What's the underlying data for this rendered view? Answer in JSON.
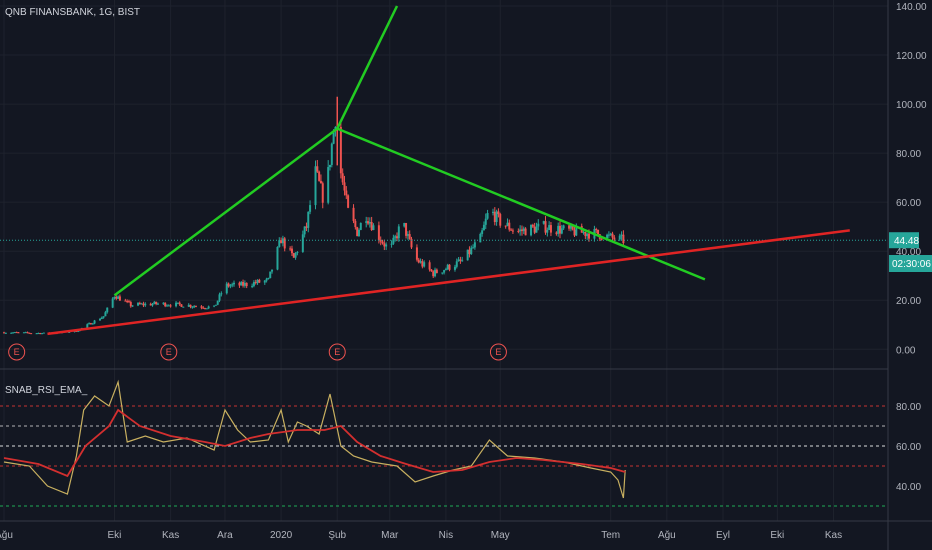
{
  "header": {
    "main_title": "QNB FINANSBANK, 1G, BIST",
    "indicator_title": "SNAB_RSI_EMA_"
  },
  "price_badges": {
    "last_price": "44.48",
    "countdown": "02:30:06"
  },
  "colors": {
    "background": "#131722",
    "grid": "#1e222d",
    "candle_up": "#26a69a",
    "candle_down": "#ef5350",
    "trend_green": "#22cc22",
    "trend_red": "#e02424",
    "rsi_line": "#c8b060",
    "rsi_ema": "#d32f2f",
    "last_price_line": "#26a69a",
    "earnings": "#ef5350"
  },
  "earnings_marker_label": "E",
  "chart_data": [
    {
      "type": "candlestick",
      "title": "QNB FINANSBANK, 1G, BIST",
      "ylim": [
        -6,
        140
      ],
      "y_ticks": [
        0,
        20,
        40,
        60,
        80,
        100,
        120,
        140
      ],
      "y_tick_labels": [
        "0.00",
        "20.00",
        "40.00",
        "60.00",
        "80.00",
        "100.00",
        "120.00",
        "140.00"
      ],
      "x_ticks": [
        "Ağu",
        "Eki",
        "Kas",
        "Ara",
        "2020",
        "Şub",
        "Mar",
        "Nis",
        "May",
        "Tem",
        "Ağu",
        "Eyl",
        "Eki",
        "Kas"
      ],
      "x_domain": [
        "2019-08-01",
        "2020-11-30"
      ],
      "x_tick_dates": [
        "2019-08-01",
        "2019-10-01",
        "2019-11-01",
        "2019-12-01",
        "2020-01-01",
        "2020-02-01",
        "2020-03-01",
        "2020-04-01",
        "2020-05-01",
        "2020-07-01",
        "2020-08-01",
        "2020-09-01",
        "2020-10-01",
        "2020-11-01"
      ],
      "close_path": [
        [
          "2019-08-01",
          6.9
        ],
        [
          "2019-08-25",
          6.5
        ],
        [
          "2019-09-10",
          7.4
        ],
        [
          "2019-09-25",
          13.5
        ],
        [
          "2019-10-01",
          22.0
        ],
        [
          "2019-10-10",
          18.0
        ],
        [
          "2019-10-25",
          18.6
        ],
        [
          "2019-11-10",
          18.0
        ],
        [
          "2019-11-25",
          17.0
        ],
        [
          "2019-12-01",
          26.0
        ],
        [
          "2019-12-10",
          26.2
        ],
        [
          "2019-12-25",
          28.0
        ],
        [
          "2020-01-01",
          45.0
        ],
        [
          "2020-01-08",
          37.0
        ],
        [
          "2020-01-15",
          50.0
        ],
        [
          "2020-01-20",
          72.0
        ],
        [
          "2020-01-25",
          60.0
        ],
        [
          "2020-01-31",
          95.0
        ],
        [
          "2020-02-03",
          72.0
        ],
        [
          "2020-02-07",
          56.0
        ],
        [
          "2020-02-12",
          48.0
        ],
        [
          "2020-02-17",
          55.0
        ],
        [
          "2020-02-24",
          46.0
        ],
        [
          "2020-03-01",
          40.0
        ],
        [
          "2020-03-08",
          52.0
        ],
        [
          "2020-03-15",
          37.0
        ],
        [
          "2020-03-25",
          31.0
        ],
        [
          "2020-04-01",
          33.0
        ],
        [
          "2020-04-10",
          36.0
        ],
        [
          "2020-04-20",
          45.0
        ],
        [
          "2020-04-25",
          57.0
        ],
        [
          "2020-05-01",
          52.0
        ],
        [
          "2020-05-10",
          48.0
        ],
        [
          "2020-05-25",
          50.0
        ],
        [
          "2020-06-10",
          48.0
        ],
        [
          "2020-06-25",
          47.0
        ],
        [
          "2020-07-01",
          45.5
        ],
        [
          "2020-07-08",
          44.48
        ]
      ],
      "series": [
        {
          "values": [
            [
              [
                "2019-10-01",
                22.0
              ],
              [
                "2020-02-01",
                90.0
              ]
            ],
            [
              [
                "2020-02-01",
                90.0
              ],
              [
                "2020-03-05",
                140.0
              ]
            ]
          ]
        },
        {
          "values": [
            [
              [
                "2020-02-01",
                90.0
              ],
              [
                "2020-08-22",
                28.5
              ]
            ]
          ]
        },
        {
          "values": [
            [
              [
                "2019-08-25",
                6.3
              ],
              [
                "2020-11-10",
                48.5
              ]
            ]
          ]
        }
      ],
      "last_price": 44.48,
      "earnings_dates": [
        "2019-08-08",
        "2019-10-31",
        "2020-02-01",
        "2020-04-30"
      ],
      "grid": false
    },
    {
      "type": "line",
      "title": "SNAB_RSI_EMA_",
      "ylim": [
        25,
        95
      ],
      "y_ticks": [
        40,
        60,
        80
      ],
      "y_tick_labels": [
        "40.00",
        "60.00",
        "80.00"
      ],
      "hlines": [
        {
          "y": 80,
          "color": "#e53935"
        },
        {
          "y": 70,
          "color": "#cfcfcf"
        },
        {
          "y": 60,
          "color": "#ffffff"
        },
        {
          "y": 50,
          "color": "#e53935"
        },
        {
          "y": 30,
          "color": "#22c55e"
        }
      ],
      "series": [
        {
          "values": [
            [
              "2019-08-01",
              52
            ],
            [
              "2019-08-15",
              50
            ],
            [
              "2019-08-25",
              40
            ],
            [
              "2019-09-05",
              36
            ],
            [
              "2019-09-10",
              55
            ],
            [
              "2019-09-14",
              78
            ],
            [
              "2019-09-20",
              85
            ],
            [
              "2019-09-28",
              80
            ],
            [
              "2019-10-03",
              92
            ],
            [
              "2019-10-08",
              62
            ],
            [
              "2019-10-18",
              65
            ],
            [
              "2019-10-28",
              62
            ],
            [
              "2019-11-10",
              64
            ],
            [
              "2019-11-25",
              58
            ],
            [
              "2019-12-01",
              78
            ],
            [
              "2019-12-08",
              68
            ],
            [
              "2019-12-15",
              62
            ],
            [
              "2019-12-25",
              63
            ],
            [
              "2020-01-01",
              78
            ],
            [
              "2020-01-05",
              62
            ],
            [
              "2020-01-10",
              72
            ],
            [
              "2020-01-15",
              70
            ],
            [
              "2020-01-22",
              66
            ],
            [
              "2020-01-28",
              86
            ],
            [
              "2020-02-03",
              60
            ],
            [
              "2020-02-10",
              55
            ],
            [
              "2020-02-20",
              52
            ],
            [
              "2020-03-05",
              50
            ],
            [
              "2020-03-15",
              42
            ],
            [
              "2020-03-25",
              45
            ],
            [
              "2020-04-05",
              48
            ],
            [
              "2020-04-15",
              50
            ],
            [
              "2020-04-25",
              63
            ],
            [
              "2020-05-05",
              55
            ],
            [
              "2020-05-20",
              54
            ],
            [
              "2020-06-05",
              52
            ],
            [
              "2020-06-20",
              49
            ],
            [
              "2020-07-01",
              47
            ],
            [
              "2020-07-05",
              43
            ],
            [
              "2020-07-08",
              34
            ],
            [
              "2020-07-09",
              48
            ]
          ]
        },
        {
          "values": [
            [
              "2019-08-01",
              54
            ],
            [
              "2019-08-20",
              51
            ],
            [
              "2019-09-05",
              45
            ],
            [
              "2019-09-15",
              60
            ],
            [
              "2019-09-28",
              70
            ],
            [
              "2019-10-03",
              78
            ],
            [
              "2019-10-15",
              70
            ],
            [
              "2019-11-01",
              65
            ],
            [
              "2019-11-20",
              62
            ],
            [
              "2019-12-01",
              60
            ],
            [
              "2019-12-15",
              64
            ],
            [
              "2019-12-25",
              66
            ],
            [
              "2020-01-10",
              68
            ],
            [
              "2020-01-25",
              68
            ],
            [
              "2020-02-03",
              70
            ],
            [
              "2020-02-12",
              62
            ],
            [
              "2020-02-25",
              55
            ],
            [
              "2020-03-10",
              51
            ],
            [
              "2020-03-25",
              47
            ],
            [
              "2020-04-10",
              48
            ],
            [
              "2020-04-25",
              52
            ],
            [
              "2020-05-10",
              54
            ],
            [
              "2020-05-25",
              53
            ],
            [
              "2020-06-15",
              51
            ],
            [
              "2020-07-01",
              49
            ],
            [
              "2020-07-09",
              47
            ]
          ]
        }
      ],
      "grid": false
    }
  ]
}
